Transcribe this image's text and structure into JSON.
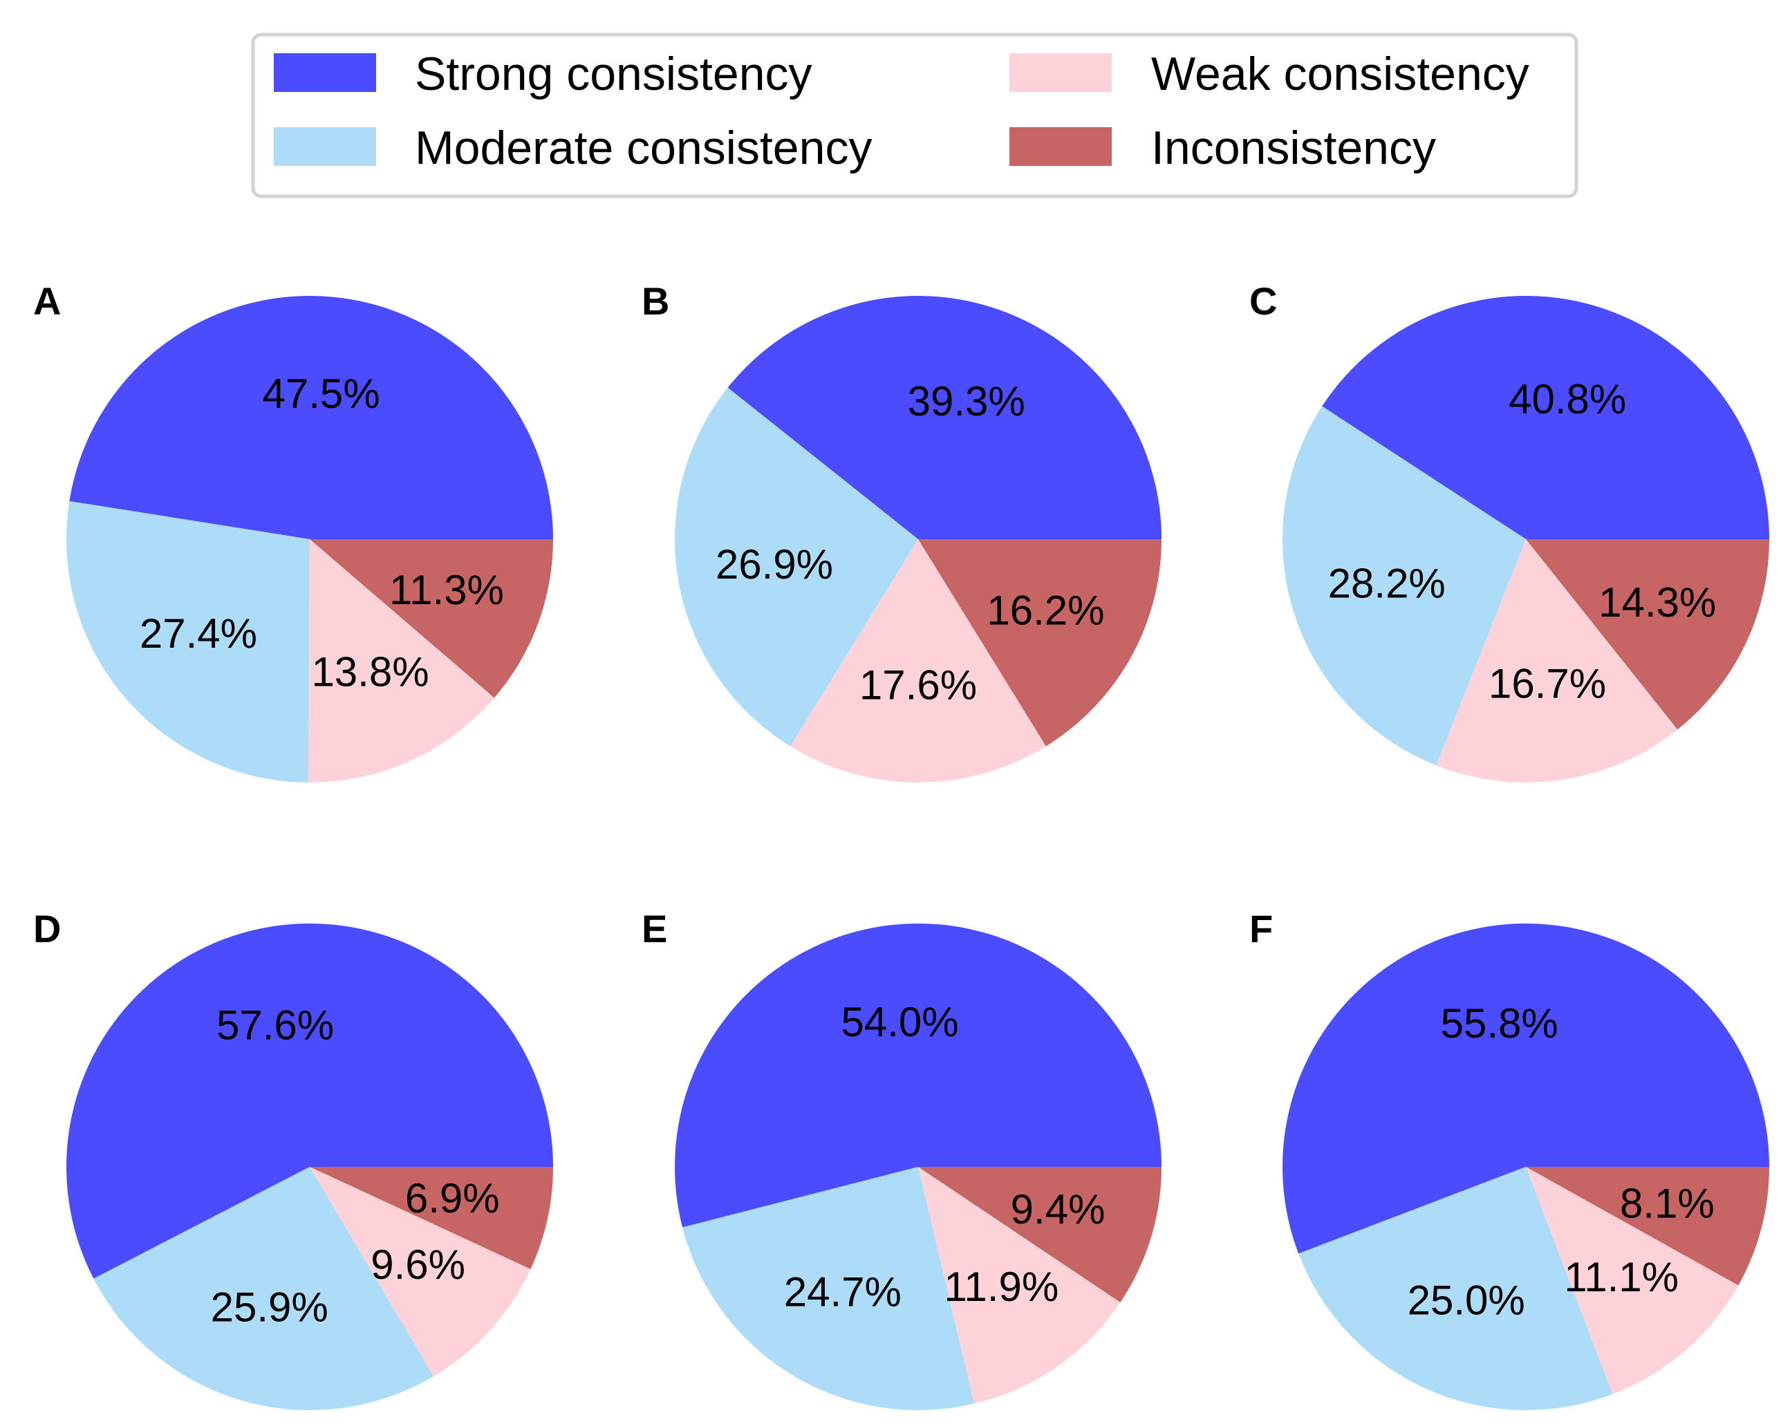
{
  "chart_data": {
    "type": "pie",
    "categories": [
      "Strong consistency",
      "Moderate consistency",
      "Weak consistency",
      "Inconsistency"
    ],
    "colors": [
      "#4b4bff",
      "#addcf8",
      "#fdd3d9",
      "#c76464"
    ],
    "legend": {
      "placement": "top-center",
      "columns": 2,
      "order": [
        "Strong consistency",
        "Weak consistency",
        "Moderate consistency",
        "Inconsistency"
      ]
    },
    "charts": [
      {
        "panel": "A",
        "values": [
          47.5,
          27.4,
          13.8,
          11.3
        ],
        "labels": [
          "47.5%",
          "27.4%",
          "13.8%",
          "11.3%"
        ]
      },
      {
        "panel": "B",
        "values": [
          39.3,
          26.9,
          17.6,
          16.2
        ],
        "labels": [
          "39.3%",
          "26.9%",
          "17.6%",
          "16.2%"
        ]
      },
      {
        "panel": "C",
        "values": [
          40.8,
          28.2,
          16.7,
          14.3
        ],
        "labels": [
          "40.8%",
          "28.2%",
          "16.7%",
          "14.3%"
        ]
      },
      {
        "panel": "D",
        "values": [
          57.6,
          25.9,
          9.6,
          6.9
        ],
        "labels": [
          "57.6%",
          "25.9%",
          "9.6%",
          "6.9%"
        ]
      },
      {
        "panel": "E",
        "values": [
          54.0,
          24.7,
          11.9,
          9.4
        ],
        "labels": [
          "54.0%",
          "24.7%",
          "11.9%",
          "9.4%"
        ]
      },
      {
        "panel": "F",
        "values": [
          55.8,
          25.0,
          11.1,
          8.1
        ],
        "labels": [
          "55.8%",
          "25.0%",
          "11.1%",
          "8.1%"
        ]
      }
    ]
  }
}
